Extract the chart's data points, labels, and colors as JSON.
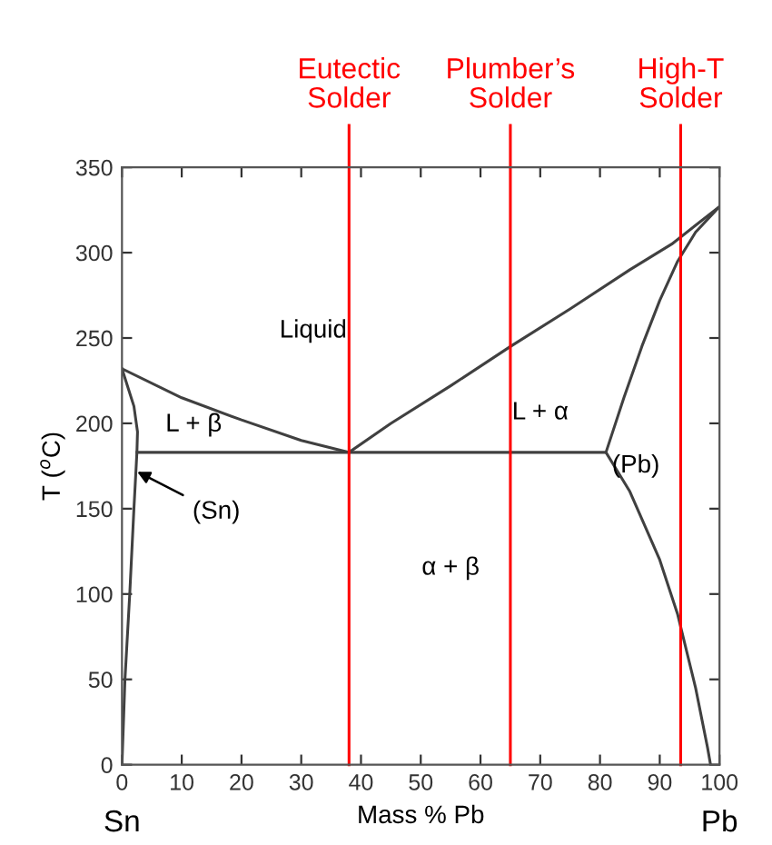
{
  "chart_data": {
    "type": "line",
    "xlabel": "Mass % Pb",
    "ylabel": "T ($^{o}$C)",
    "xlim": [
      0,
      100
    ],
    "xticks": [
      0,
      10,
      20,
      30,
      40,
      50,
      60,
      70,
      80,
      90,
      100
    ],
    "ylim": [
      0,
      350
    ],
    "yticks": [
      0,
      50,
      100,
      150,
      200,
      250,
      300,
      350
    ],
    "grid": false,
    "legend": false,
    "marker": "none",
    "line_style": "solid",
    "series": [
      {
        "color": "#404040",
        "x": [
          0,
          10,
          20,
          30,
          38
        ],
        "values": [
          232,
          215,
          202,
          190,
          183
        ]
      },
      {
        "color": "#404040",
        "x": [
          38,
          45,
          55,
          65,
          75,
          85,
          92,
          100
        ],
        "values": [
          183,
          200,
          222,
          245,
          267,
          290,
          305,
          327
        ]
      },
      {
        "color": "#404040",
        "x": [
          100,
          96,
          93,
          90,
          87,
          84,
          81,
          85,
          90,
          93,
          96,
          98,
          98.5
        ],
        "values": [
          327,
          312,
          295,
          272,
          245,
          215,
          183,
          160,
          120,
          88,
          45,
          10,
          0
        ]
      },
      {
        "color": "#404040",
        "x": [
          0,
          2,
          2.6,
          2.5,
          2,
          1.3,
          0.5,
          0
        ],
        "values": [
          232,
          210,
          195,
          183,
          150,
          100,
          50,
          0
        ]
      },
      {
        "color": "#404040",
        "x": [
          2.5,
          81
        ],
        "values": [
          183,
          183
        ]
      }
    ],
    "ref_lines": [
      {
        "axis": "x",
        "value": 38,
        "label": "Eutectic\nSolder",
        "color": "#ff0000"
      },
      {
        "axis": "x",
        "value": 65,
        "label": "Plumber’s\nSolder",
        "color": "#ff0000"
      },
      {
        "axis": "x",
        "value": 93.5,
        "label": "High-T\nSolder",
        "color": "#ff0000"
      }
    ],
    "annotations": [
      "Sn",
      "Pb",
      "Liquid",
      "L + β",
      "L + α",
      "(Pb)",
      "α + β",
      {
        "text": "(Sn)",
        "x": 1.8,
        "y": 173
      }
    ]
  }
}
